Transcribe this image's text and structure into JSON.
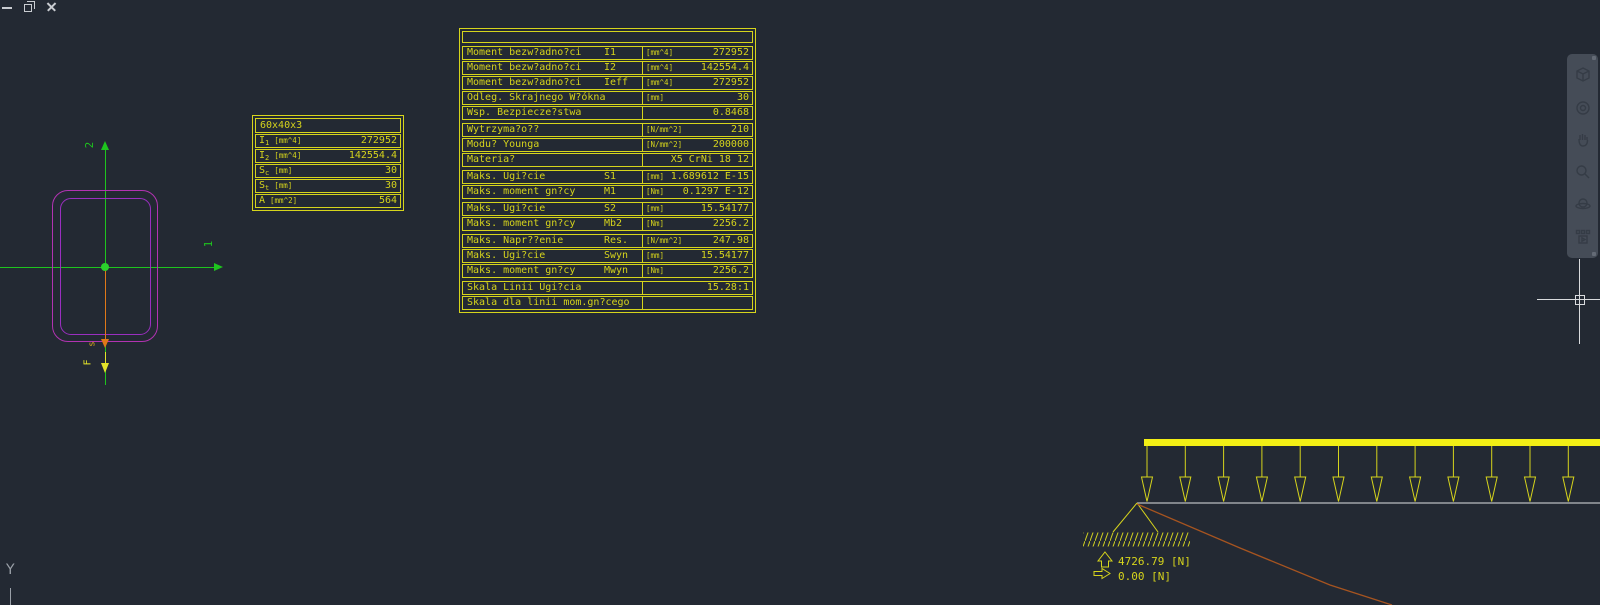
{
  "window_controls": {
    "items": [
      "minimize",
      "restore",
      "close"
    ]
  },
  "navigation_bar": {
    "icons": [
      "view-cube",
      "navigation-wheel",
      "pan",
      "zoom",
      "orbit",
      "showmotion"
    ]
  },
  "ucs": {
    "y_axis_label": "Y"
  },
  "section_view": {
    "axis_horizontal_label": "1",
    "axis_vertical_label": "2",
    "shear_label": "s",
    "force_label": "F",
    "axis_color": "#1ec41e",
    "profile_color_outer": "#b233b2",
    "profile_color_inner": "#9a2fc0"
  },
  "section_table": {
    "title": "60x40x3",
    "rows": [
      {
        "sym": "I",
        "sub": "1",
        "unit": "[mm^4]",
        "value": "272952"
      },
      {
        "sym": "I",
        "sub": "2",
        "unit": "[mm^4]",
        "value": "142554.4"
      },
      {
        "sym": "S",
        "sub": "c",
        "unit": "[mm]",
        "value": "30"
      },
      {
        "sym": "S",
        "sub": "t",
        "unit": "[mm]",
        "value": "30"
      },
      {
        "sym": "A",
        "sub": "",
        "unit": "[mm^2]",
        "value": "564"
      }
    ]
  },
  "results_table": {
    "groups": [
      {
        "rows": [
          {
            "label": "Moment bezw?adno?ci",
            "sym": "I1",
            "unit": "[mm^4]",
            "value": "272952"
          },
          {
            "label": "Moment bezw?adno?ci",
            "sym": "I2",
            "unit": "[mm^4]",
            "value": "142554.4"
          },
          {
            "label": "Moment bezw?adno?ci",
            "sym": "Ieff",
            "unit": "[mm^4]",
            "value": "272952"
          },
          {
            "label": "Odleg. Skrajnego W?ókna",
            "sym": "",
            "unit": "[mm]",
            "value": "30"
          },
          {
            "label": "Wsp. Bezpiecze?stwa",
            "sym": "",
            "unit": "",
            "value": "0.8468"
          }
        ]
      },
      {
        "rows": [
          {
            "label": "Wytrzyma?o??",
            "sym": "",
            "unit": "[N/mm^2]",
            "value": "210"
          },
          {
            "label": "Modu? Younga",
            "sym": "",
            "unit": "[N/mm^2]",
            "value": "200000"
          },
          {
            "label": "Materia?",
            "sym": "",
            "unit": "",
            "value": "X5 CrNi 18 12"
          }
        ]
      },
      {
        "rows": [
          {
            "label": "Maks. Ugi?cie",
            "sym": "S1",
            "unit": "[mm]",
            "value": "1.689612 E-15"
          },
          {
            "label": "Maks. moment gn?cy",
            "sym": "M1",
            "unit": "[Nm]",
            "value": "0.1297 E-12"
          }
        ]
      },
      {
        "rows": [
          {
            "label": "Maks. Ugi?cie",
            "sym": "S2",
            "unit": "[mm]",
            "value": "15.54177"
          },
          {
            "label": "Maks. moment gn?cy",
            "sym": "Mb2",
            "unit": "[Nm]",
            "value": "2256.2"
          }
        ]
      },
      {
        "rows": [
          {
            "label": "Maks. Napr??enie",
            "sym": "Res.",
            "unit": "[N/mm^2]",
            "value": "247.98"
          },
          {
            "label": "Maks. Ugi?cie",
            "sym": "Swyn",
            "unit": "[mm]",
            "value": "15.54177"
          },
          {
            "label": "Maks. moment gn?cy",
            "sym": "Mwyn",
            "unit": "[Nm]",
            "value": "2256.2"
          }
        ]
      },
      {
        "rows": [
          {
            "label": "Skala Linii Ugi?cia",
            "sym": "",
            "unit": "",
            "value": "15.28:1"
          },
          {
            "label": "Skala dla linii mom.gn?cego",
            "sym": "",
            "unit": "",
            "value": ""
          }
        ]
      }
    ]
  },
  "beam": {
    "load_arrow_count": 12,
    "reaction_vertical": "4726.79 [N]",
    "reaction_horizontal": "0.00 [N]",
    "load_color": "#f3ef15",
    "beam_color": "#dfe1e3",
    "moment_line_color": "#a65420",
    "cad_yellow": "#d6d41c"
  },
  "colors": {
    "background": "#232933",
    "cad_yellow": "#d6d41c"
  }
}
